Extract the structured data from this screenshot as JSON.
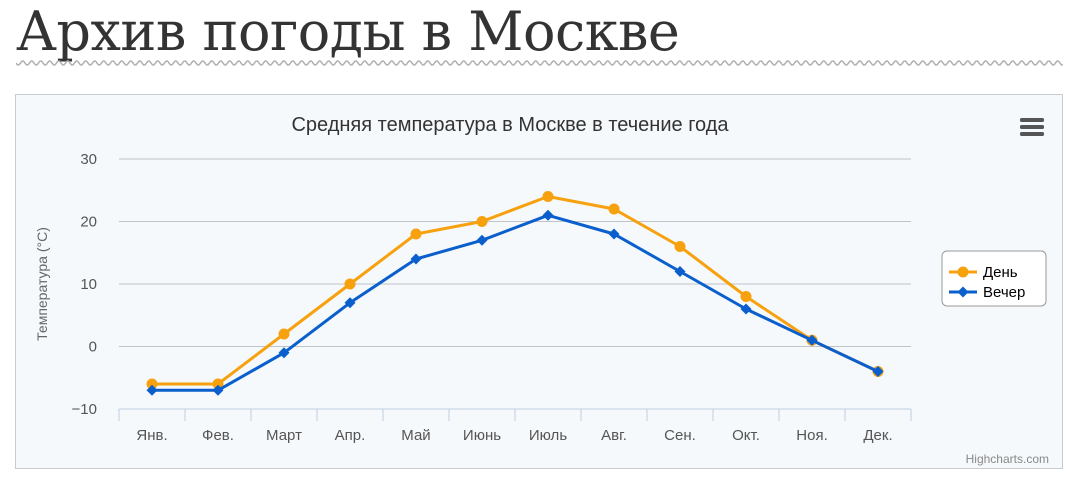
{
  "page": {
    "title": "Архив погоды в Москве"
  },
  "chart_data": {
    "type": "line",
    "title": "Средняя температура в Москве в течение года",
    "ylabel": "Температура (°C)",
    "xlabel": "",
    "categories": [
      "Янв.",
      "Фев.",
      "Март",
      "Апр.",
      "Май",
      "Июнь",
      "Июль",
      "Авг.",
      "Сен.",
      "Окт.",
      "Ноя.",
      "Дек."
    ],
    "series": [
      {
        "name": "День",
        "color": "#f7a10f",
        "marker": "circle",
        "values": [
          -6,
          -6,
          2,
          10,
          18,
          20,
          24,
          22,
          16,
          8,
          1,
          -4
        ]
      },
      {
        "name": "Вечер",
        "color": "#0a5fcc",
        "marker": "diamond",
        "values": [
          -7,
          -7,
          -1,
          7,
          14,
          17,
          21,
          18,
          12,
          6,
          1,
          -4
        ]
      }
    ],
    "ylim": [
      -10,
      30
    ],
    "yticks": [
      -10,
      0,
      10,
      20,
      30
    ],
    "ytick_labels": [
      "−10",
      "0",
      "10",
      "20",
      "30"
    ],
    "grid": true,
    "legend_placement": "right",
    "credits": "Highcharts.com",
    "menu_icon": "hamburger-menu-icon"
  }
}
